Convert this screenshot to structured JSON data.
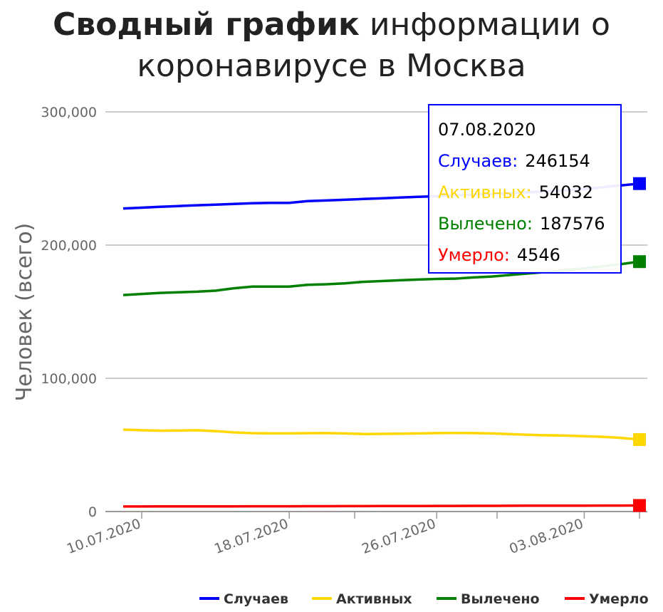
{
  "title": {
    "bold": "Сводный график",
    "rest": "информации о коронавирусе в Москва"
  },
  "chart_data": {
    "type": "line",
    "ylabel": "Человек (всего)",
    "ylim": [
      0,
      300000
    ],
    "yticks": [
      0,
      100000,
      200000,
      300000
    ],
    "ytick_labels": [
      "0",
      "100,000",
      "200,000",
      "300,000"
    ],
    "xtick_labels": [
      "10.07.2020",
      "18.07.2020",
      "26.07.2020",
      "03.08.2020"
    ],
    "x": [
      "10.07.2020",
      "11.07.2020",
      "12.07.2020",
      "13.07.2020",
      "14.07.2020",
      "15.07.2020",
      "16.07.2020",
      "17.07.2020",
      "18.07.2020",
      "19.07.2020",
      "20.07.2020",
      "21.07.2020",
      "22.07.2020",
      "23.07.2020",
      "24.07.2020",
      "25.07.2020",
      "26.07.2020",
      "27.07.2020",
      "28.07.2020",
      "29.07.2020",
      "30.07.2020",
      "31.07.2020",
      "01.08.2020",
      "02.08.2020",
      "03.08.2020",
      "04.08.2020",
      "05.08.2020",
      "06.08.2020",
      "07.08.2020"
    ],
    "grid": true,
    "legend_position": "bottom-right",
    "series": [
      {
        "name": "Случаев",
        "color": "#0000ff",
        "values": [
          227500,
          228100,
          228700,
          229300,
          229900,
          230400,
          230900,
          231400,
          231700,
          231700,
          233000,
          233500,
          234000,
          234600,
          235100,
          235700,
          236200,
          236700,
          237300,
          237800,
          238400,
          239000,
          239600,
          240300,
          241100,
          242100,
          243400,
          244800,
          246154
        ]
      },
      {
        "name": "Активных",
        "color": "#ffd700",
        "values": [
          61500,
          61000,
          60700,
          60800,
          61000,
          60400,
          59400,
          58800,
          58700,
          58700,
          58800,
          58900,
          58600,
          58200,
          58300,
          58400,
          58600,
          58900,
          59000,
          58900,
          58600,
          58100,
          57600,
          57200,
          57000,
          56500,
          56100,
          55300,
          54032
        ]
      },
      {
        "name": "Вылечено",
        "color": "#008000",
        "values": [
          162500,
          163300,
          164100,
          164600,
          165000,
          165800,
          167600,
          168800,
          168800,
          168800,
          170200,
          170600,
          171300,
          172400,
          173000,
          173600,
          174100,
          174600,
          174800,
          175700,
          176400,
          177600,
          178700,
          179900,
          181100,
          182600,
          184100,
          185700,
          187576
        ]
      },
      {
        "name": "Умерло",
        "color": "#ff0000",
        "values": [
          3800,
          3820,
          3840,
          3860,
          3880,
          3900,
          3920,
          3940,
          3960,
          3980,
          4000,
          4030,
          4060,
          4090,
          4120,
          4150,
          4180,
          4210,
          4240,
          4270,
          4300,
          4330,
          4360,
          4390,
          4420,
          4450,
          4480,
          4510,
          4546
        ]
      }
    ]
  },
  "tooltip": {
    "date": "07.08.2020",
    "rows": [
      {
        "label": "Случаев:",
        "value": "246154",
        "color": "#0000ff"
      },
      {
        "label": "Активных:",
        "value": "54032",
        "color": "#ffd700"
      },
      {
        "label": "Вылечено:",
        "value": "187576",
        "color": "#008000"
      },
      {
        "label": "Умерло:",
        "value": "4546",
        "color": "#ff0000"
      }
    ]
  }
}
